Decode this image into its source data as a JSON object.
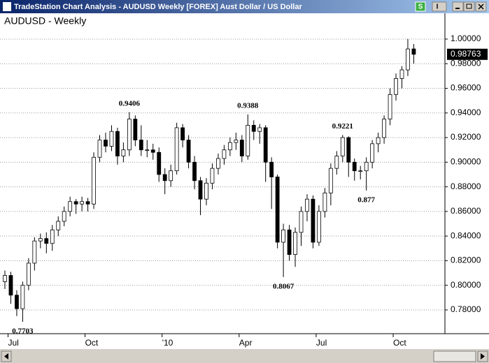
{
  "window": {
    "title": "TradeStation Chart Analysis - AUDUSD Weekly [FOREX] Aust Dollar / US Dollar",
    "buttons": [
      "S",
      "I"
    ]
  },
  "chart_data": {
    "type": "candlestick",
    "title": "AUDUSD - Weekly",
    "categories": [
      null,
      "Jul",
      null,
      null,
      null,
      null,
      null,
      null,
      null,
      null,
      null,
      null,
      null,
      null,
      "Oct",
      null,
      null,
      null,
      null,
      null,
      null,
      null,
      null,
      null,
      null,
      null,
      null,
      "'10",
      null,
      null,
      null,
      null,
      null,
      null,
      null,
      null,
      null,
      null,
      null,
      null,
      "Apr",
      null,
      null,
      null,
      null,
      null,
      null,
      null,
      null,
      null,
      null,
      null,
      null,
      "Jul",
      null,
      null,
      null,
      null,
      null,
      null,
      null,
      null,
      null,
      null,
      null,
      null,
      "Oct",
      null,
      null,
      null
    ],
    "open": [
      0.803,
      0.808,
      0.792,
      0.781,
      0.8,
      0.818,
      0.836,
      0.838,
      0.834,
      0.845,
      0.852,
      0.86,
      0.868,
      0.866,
      0.868,
      0.866,
      0.904,
      0.918,
      0.913,
      0.925,
      0.905,
      0.91,
      0.935,
      0.918,
      0.91,
      0.91,
      0.908,
      0.89,
      0.885,
      0.893,
      0.928,
      0.918,
      0.9,
      0.885,
      0.87,
      0.883,
      0.895,
      0.903,
      0.91,
      0.916,
      0.918,
      0.905,
      0.93,
      0.925,
      0.928,
      0.9,
      0.888,
      0.835,
      0.845,
      0.825,
      0.843,
      0.86,
      0.87,
      0.835,
      0.86,
      0.875,
      0.895,
      0.905,
      0.92,
      0.9,
      0.893,
      0.893,
      0.9,
      0.915,
      0.92,
      0.935,
      0.955,
      0.968,
      0.975,
      0.992
    ],
    "high": [
      0.812,
      0.811,
      0.796,
      0.803,
      0.822,
      0.839,
      0.842,
      0.843,
      0.849,
      0.856,
      0.864,
      0.872,
      0.87,
      0.872,
      0.871,
      0.908,
      0.922,
      0.924,
      0.93,
      0.928,
      0.916,
      0.9406,
      0.938,
      0.93,
      0.918,
      0.915,
      0.912,
      0.895,
      0.898,
      0.932,
      0.931,
      0.922,
      0.905,
      0.888,
      0.887,
      0.899,
      0.907,
      0.914,
      0.92,
      0.924,
      0.922,
      0.9388,
      0.934,
      0.931,
      0.93,
      0.904,
      0.89,
      0.85,
      0.849,
      0.847,
      0.864,
      0.874,
      0.873,
      0.865,
      0.879,
      0.899,
      0.909,
      0.9221,
      0.921,
      0.903,
      0.897,
      0.904,
      0.918,
      0.924,
      0.938,
      0.96,
      0.972,
      0.978,
      1.0,
      0.996
    ],
    "low": [
      0.797,
      0.785,
      0.775,
      0.7703,
      0.796,
      0.812,
      0.83,
      0.826,
      0.828,
      0.84,
      0.848,
      0.856,
      0.858,
      0.86,
      0.86,
      0.862,
      0.9,
      0.908,
      0.909,
      0.898,
      0.9,
      0.905,
      0.913,
      0.905,
      0.904,
      0.902,
      0.884,
      0.874,
      0.88,
      0.89,
      0.912,
      0.895,
      0.878,
      0.857,
      0.865,
      0.878,
      0.89,
      0.898,
      0.905,
      0.91,
      0.9,
      0.902,
      0.918,
      0.915,
      0.884,
      0.862,
      0.83,
      0.8067,
      0.82,
      0.815,
      0.832,
      0.852,
      0.83,
      0.832,
      0.855,
      0.865,
      0.89,
      0.9,
      0.888,
      0.885,
      0.886,
      0.877,
      0.895,
      0.908,
      0.915,
      0.93,
      0.95,
      0.96,
      0.97,
      0.98
    ],
    "close": [
      0.808,
      0.792,
      0.781,
      0.8,
      0.818,
      0.836,
      0.838,
      0.834,
      0.845,
      0.852,
      0.86,
      0.868,
      0.866,
      0.868,
      0.866,
      0.904,
      0.918,
      0.913,
      0.925,
      0.905,
      0.91,
      0.935,
      0.918,
      0.91,
      0.91,
      0.908,
      0.89,
      0.885,
      0.893,
      0.928,
      0.918,
      0.9,
      0.885,
      0.87,
      0.883,
      0.895,
      0.903,
      0.91,
      0.916,
      0.918,
      0.905,
      0.93,
      0.925,
      0.928,
      0.9,
      0.888,
      0.835,
      0.845,
      0.825,
      0.843,
      0.86,
      0.87,
      0.835,
      0.86,
      0.875,
      0.895,
      0.905,
      0.92,
      0.9,
      0.893,
      0.893,
      0.9,
      0.915,
      0.92,
      0.935,
      0.955,
      0.968,
      0.975,
      0.992,
      0.98763
    ],
    "up_color": "#ffffff",
    "down_color": "#000000",
    "annotations": [
      0.7703,
      0.9406,
      0.9388,
      0.8067,
      0.9221,
      0.877
    ],
    "last_price": 0.98763,
    "ylim": [
      0.7607,
      1.0204
    ],
    "yticks": [
      {
        "value": 0.78,
        "label": "0.78000"
      },
      {
        "value": 0.8,
        "label": "0.80000"
      },
      {
        "value": 0.82,
        "label": "0.82000"
      },
      {
        "value": 0.84,
        "label": "0.84000"
      },
      {
        "value": 0.86,
        "label": "0.86000"
      },
      {
        "value": 0.88,
        "label": "0.88000"
      },
      {
        "value": 0.9,
        "label": "0.90000"
      },
      {
        "value": 0.92,
        "label": "0.92000"
      },
      {
        "value": 0.94,
        "label": "0.94000"
      },
      {
        "value": 0.96,
        "label": "0.96000"
      },
      {
        "value": 0.98,
        "label": "0.98000"
      },
      {
        "value": 1.0,
        "label": "1.00000"
      }
    ],
    "grid": true
  }
}
